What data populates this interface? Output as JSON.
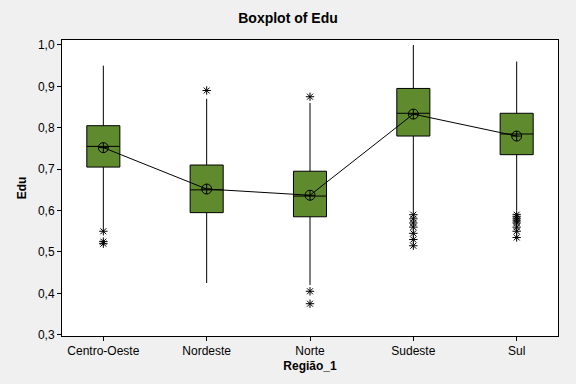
{
  "chart_data": {
    "type": "box",
    "title": "Boxplot of Edu",
    "x_label": "Região_1",
    "y_label": "Edu",
    "categories": [
      "Centro-Oeste",
      "Nordeste",
      "Norte",
      "Sudeste",
      "Sul"
    ],
    "whisker_low": [
      0.56,
      0.425,
      0.42,
      0.6,
      0.6
    ],
    "q1": [
      0.705,
      0.595,
      0.585,
      0.78,
      0.735
    ],
    "median": [
      0.755,
      0.65,
      0.635,
      0.835,
      0.785
    ],
    "q3": [
      0.805,
      0.71,
      0.695,
      0.895,
      0.835
    ],
    "whisker_high": [
      0.95,
      0.87,
      0.86,
      1.0,
      0.96
    ],
    "mean": [
      0.752,
      0.652,
      0.637,
      0.833,
      0.78
    ],
    "outliers": [
      [
        0.55,
        0.525,
        0.52
      ],
      [
        0.89
      ],
      [
        0.875,
        0.405,
        0.375
      ],
      [
        0.59,
        0.58,
        0.57,
        0.56,
        0.545,
        0.53,
        0.515
      ],
      [
        0.59,
        0.585,
        0.58,
        0.575,
        0.57,
        0.56,
        0.55,
        0.535
      ]
    ],
    "color": "#5f8a2e",
    "marker": "circle-cross",
    "ylim": [
      0.297,
      1.012
    ],
    "yticks": [
      {
        "value": 0.3,
        "label": "0,3"
      },
      {
        "value": 0.4,
        "label": "0,4"
      },
      {
        "value": 0.5,
        "label": "0,5"
      },
      {
        "value": 0.6,
        "label": "0,6"
      },
      {
        "value": 0.7,
        "label": "0,7"
      },
      {
        "value": 0.8,
        "label": "0,8"
      },
      {
        "value": 0.9,
        "label": "0,9"
      },
      {
        "value": 1.0,
        "label": "1,0"
      }
    ],
    "grid": false
  }
}
